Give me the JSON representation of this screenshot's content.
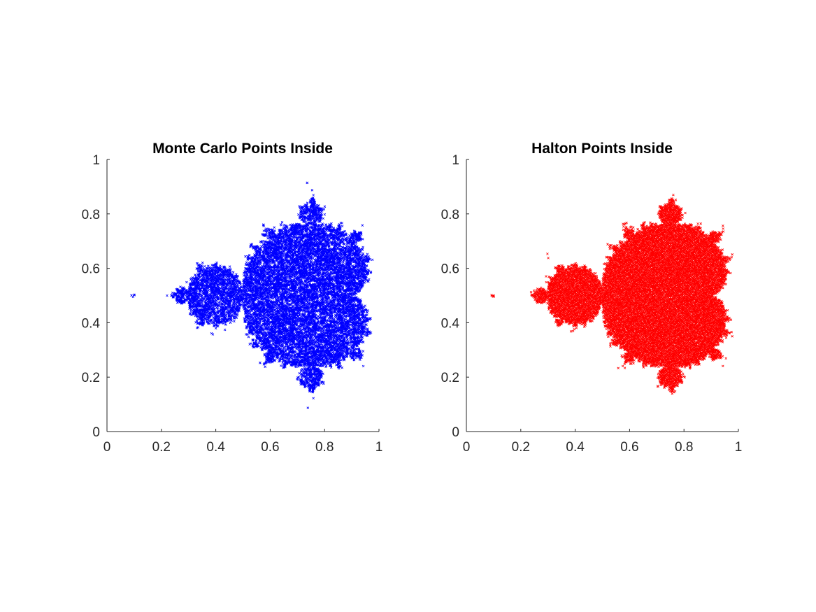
{
  "chart_data": [
    {
      "type": "scatter",
      "title": "Monte Carlo Points Inside",
      "xlabel": "",
      "ylabel": "",
      "xlim": [
        0,
        1
      ],
      "ylim": [
        0,
        1
      ],
      "xticks": [
        0,
        0.2,
        0.4,
        0.6,
        0.8,
        1
      ],
      "yticks": [
        0,
        0.2,
        0.4,
        0.6,
        0.8,
        1
      ],
      "xtick_labels": [
        "0",
        "0.2",
        "0.4",
        "0.6",
        "0.8",
        "1"
      ],
      "ytick_labels": [
        "0",
        "0.2",
        "0.4",
        "0.6",
        "0.8",
        "1"
      ],
      "grid": false,
      "color": "#0000ff",
      "sampling": "monte-carlo",
      "region": "mandelbrot-set",
      "domain_mapping": {
        "re_min": -2.0,
        "re_span": 2.5,
        "im_min": -1.25,
        "im_span": 2.5
      },
      "series": [
        {
          "marker": "x",
          "color": "#0000ff"
        }
      ]
    },
    {
      "type": "scatter",
      "title": "Halton Points Inside",
      "xlabel": "",
      "ylabel": "",
      "xlim": [
        0,
        1
      ],
      "ylim": [
        0,
        1
      ],
      "xticks": [
        0,
        0.2,
        0.4,
        0.6,
        0.8,
        1
      ],
      "yticks": [
        0,
        0.2,
        0.4,
        0.6,
        0.8,
        1
      ],
      "xtick_labels": [
        "0",
        "0.2",
        "0.4",
        "0.6",
        "0.8",
        "1"
      ],
      "ytick_labels": [
        "0",
        "0.2",
        "0.4",
        "0.6",
        "0.8",
        "1"
      ],
      "grid": false,
      "color": "#ff0000",
      "sampling": "halton",
      "region": "mandelbrot-set",
      "domain_mapping": {
        "re_min": -2.0,
        "re_span": 2.5,
        "im_min": -1.25,
        "im_span": 2.5
      },
      "series": [
        {
          "marker": "x",
          "color": "#ff0000"
        }
      ]
    }
  ]
}
